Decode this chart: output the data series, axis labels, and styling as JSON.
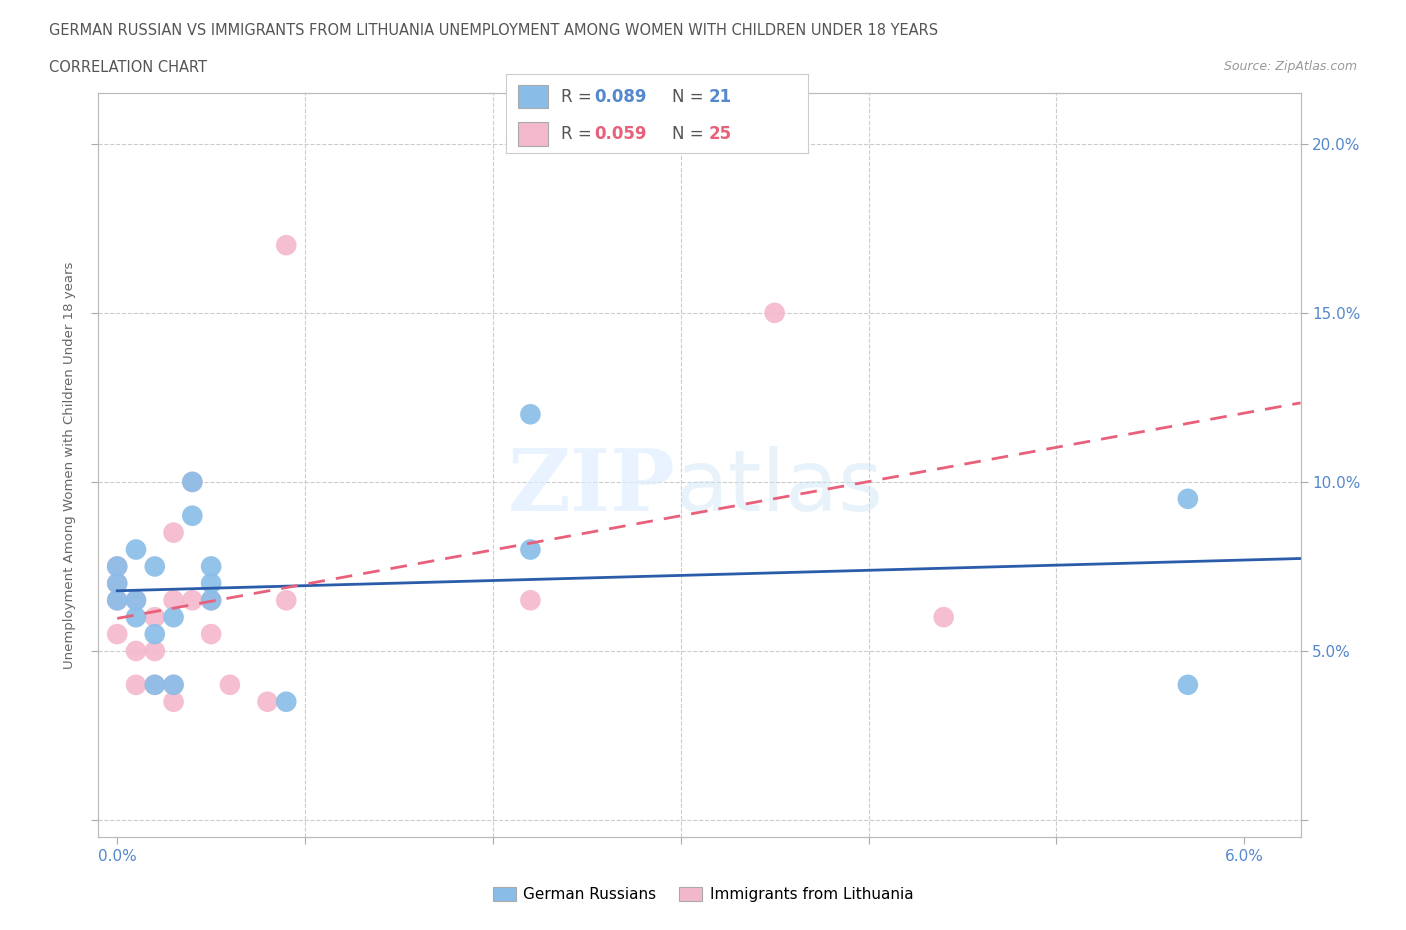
{
  "title_line1": "GERMAN RUSSIAN VS IMMIGRANTS FROM LITHUANIA UNEMPLOYMENT AMONG WOMEN WITH CHILDREN UNDER 18 YEARS",
  "title_line2": "CORRELATION CHART",
  "source": "Source: ZipAtlas.com",
  "ylabel": "Unemployment Among Women with Children Under 18 years",
  "xlim": [
    -0.001,
    0.063
  ],
  "ylim": [
    -0.005,
    0.215
  ],
  "xticks": [
    0.0,
    0.01,
    0.02,
    0.03,
    0.04,
    0.05,
    0.06
  ],
  "xticklabels": [
    "0.0%",
    "",
    "",
    "",
    "",
    "",
    "6.0%"
  ],
  "yticks": [
    0.0,
    0.05,
    0.1,
    0.15,
    0.2
  ],
  "yticklabels_right": [
    "",
    "5.0%",
    "10.0%",
    "15.0%",
    "20.0%"
  ],
  "blue_color": "#89bde8",
  "pink_color": "#f4b8cc",
  "blue_line_color": "#2a5caa",
  "pink_line_color": "#e8607a",
  "grid_color": "#cccccc",
  "bg_color": "#ffffff",
  "blue_points_x": [
    0.0,
    0.0,
    0.0,
    0.001,
    0.001,
    0.001,
    0.002,
    0.002,
    0.002,
    0.003,
    0.003,
    0.004,
    0.004,
    0.005,
    0.005,
    0.005,
    0.009,
    0.022,
    0.022,
    0.057,
    0.057
  ],
  "blue_points_y": [
    0.075,
    0.07,
    0.065,
    0.08,
    0.065,
    0.06,
    0.075,
    0.055,
    0.04,
    0.06,
    0.04,
    0.09,
    0.1,
    0.075,
    0.07,
    0.065,
    0.035,
    0.08,
    0.12,
    0.095,
    0.04
  ],
  "pink_points_x": [
    0.0,
    0.0,
    0.0,
    0.0,
    0.001,
    0.001,
    0.001,
    0.002,
    0.002,
    0.002,
    0.003,
    0.003,
    0.003,
    0.003,
    0.004,
    0.004,
    0.005,
    0.005,
    0.006,
    0.008,
    0.009,
    0.009,
    0.022,
    0.035,
    0.044
  ],
  "pink_points_y": [
    0.075,
    0.07,
    0.065,
    0.055,
    0.065,
    0.05,
    0.04,
    0.06,
    0.05,
    0.04,
    0.085,
    0.065,
    0.04,
    0.035,
    0.1,
    0.065,
    0.065,
    0.055,
    0.04,
    0.035,
    0.17,
    0.065,
    0.065,
    0.15,
    0.06
  ],
  "blue_R": "0.089",
  "blue_N": "21",
  "pink_R": "0.059",
  "pink_N": "25"
}
